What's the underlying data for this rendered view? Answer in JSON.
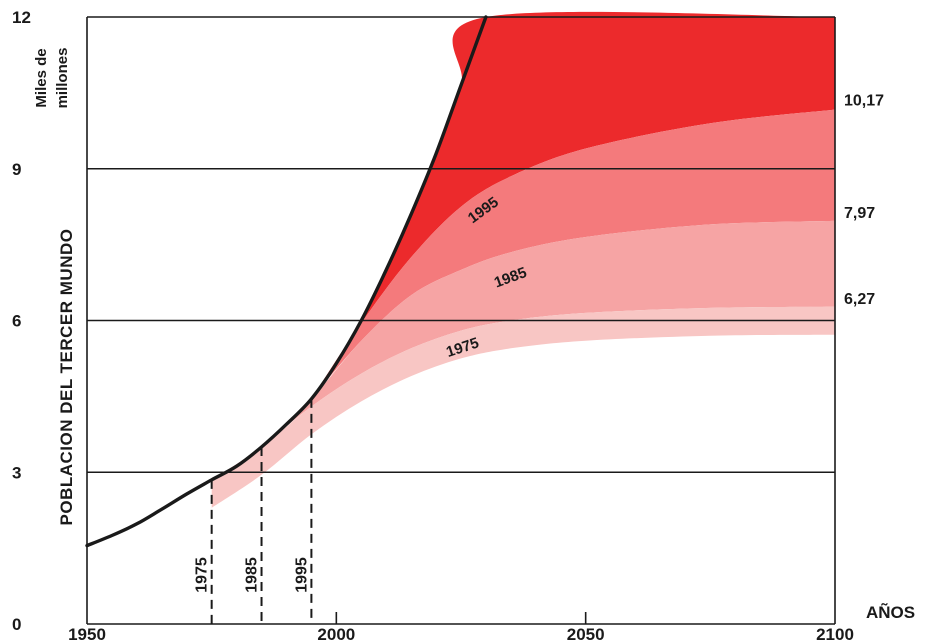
{
  "chart_data": {
    "type": "area",
    "ylabel": "POBLACION DEL TERCER MUNDO",
    "yunit_line1": "Miles de",
    "yunit_line2": "millones",
    "xunit": "AÑOS",
    "xlim": [
      1950,
      2100
    ],
    "ylim": [
      0,
      12
    ],
    "x_ticks": [
      "1950",
      "2000",
      "2050",
      "2100"
    ],
    "y_ticks": [
      "0",
      "3",
      "6",
      "9",
      "12"
    ],
    "historical": {
      "x": [
        1950,
        1955,
        1960,
        1965,
        1970,
        1975,
        1980,
        1985,
        1990,
        1995
      ],
      "y": [
        1.55,
        1.75,
        1.98,
        2.27,
        2.57,
        2.85,
        3.12,
        3.5,
        3.95,
        4.45
      ]
    },
    "series": [
      {
        "name": "1975",
        "x": [
          1975,
          1985,
          1995,
          2005,
          2015,
          2025,
          2035,
          2050,
          2075,
          2100
        ],
        "y": [
          2.85,
          3.5,
          4.3,
          4.95,
          5.45,
          5.8,
          6.0,
          6.15,
          6.25,
          6.27
        ]
      },
      {
        "name": "1985",
        "x": [
          1985,
          1995,
          2005,
          2015,
          2025,
          2035,
          2050,
          2075,
          2100
        ],
        "y": [
          3.5,
          4.45,
          5.6,
          6.5,
          7.0,
          7.35,
          7.65,
          7.9,
          7.97
        ]
      },
      {
        "name": "1995",
        "x": [
          1995,
          2005,
          2015,
          2025,
          2035,
          2050,
          2075,
          2100
        ],
        "y": [
          4.45,
          5.95,
          7.25,
          8.25,
          8.85,
          9.4,
          9.9,
          10.17
        ]
      },
      {
        "name": "",
        "x": [
          1995,
          2000,
          2005,
          2010,
          2015,
          2020,
          2025,
          2030,
          2100
        ],
        "y": [
          4.45,
          5.15,
          6.0,
          7.0,
          8.1,
          9.3,
          10.65,
          12,
          12
        ]
      }
    ],
    "end_labels": [
      "10,17",
      "7,97",
      "6,27"
    ],
    "vertical_markers": [
      "1975",
      "1985",
      "1995"
    ],
    "grid": true,
    "colors": {
      "band_1975": "#f8c6c4",
      "band_1985": "#f6a4a4",
      "band_1995": "#f47a7c",
      "band_top": "#ec2a2c",
      "line": "#1a1a1a"
    }
  }
}
